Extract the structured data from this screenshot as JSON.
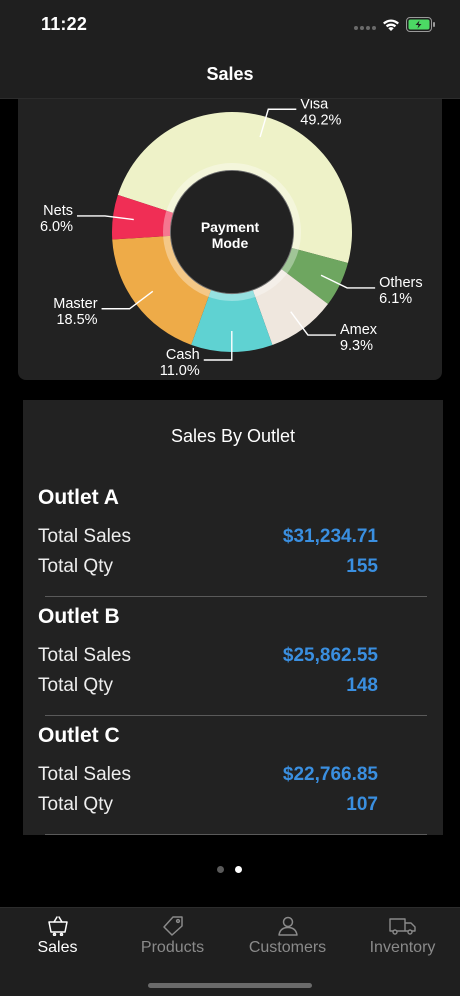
{
  "status_bar": {
    "time": "11:22"
  },
  "header": {
    "title": "Sales"
  },
  "chart_data": {
    "type": "pie",
    "center_label": [
      "Payment",
      "Mode"
    ],
    "slices": [
      {
        "label": "Visa",
        "value": 49.2,
        "display": "49.2%",
        "color": "#eef2c8"
      },
      {
        "label": "Others",
        "value": 6.1,
        "display": "6.1%",
        "color": "#6ea660"
      },
      {
        "label": "Amex",
        "value": 9.3,
        "display": "9.3%",
        "color": "#efe7de"
      },
      {
        "label": "Cash",
        "value": 11.0,
        "display": "11.0%",
        "color": "#5fd2d2"
      },
      {
        "label": "Master",
        "value": 18.5,
        "display": "18.5%",
        "color": "#eeab48"
      },
      {
        "label": "Nets",
        "value": 6.0,
        "display": "6.0%",
        "color": "#f02e55"
      }
    ]
  },
  "sales_by_outlet": {
    "title": "Sales By Outlet",
    "outlets": [
      {
        "name": "Outlet A",
        "sales_label": "Total Sales",
        "sales": "$31,234.71",
        "qty_label": "Total Qty",
        "qty": "155"
      },
      {
        "name": "Outlet B",
        "sales_label": "Total Sales",
        "sales": "$25,862.55",
        "qty_label": "Total Qty",
        "qty": "148"
      },
      {
        "name": "Outlet C",
        "sales_label": "Total Sales",
        "sales": "$22,766.85",
        "qty_label": "Total Qty",
        "qty": "107"
      }
    ]
  },
  "pager": {
    "pages": 2,
    "current": 2
  },
  "tab_bar": {
    "tabs": [
      {
        "label": "Sales",
        "icon": "basket-icon",
        "active": true
      },
      {
        "label": "Products",
        "icon": "tag-icon",
        "active": false
      },
      {
        "label": "Customers",
        "icon": "person-icon",
        "active": false
      },
      {
        "label": "Inventory",
        "icon": "truck-icon",
        "active": false
      }
    ]
  },
  "colors": {
    "accent": "#3a8fe0",
    "card": "#222222",
    "bar": "#1f1f1f"
  }
}
